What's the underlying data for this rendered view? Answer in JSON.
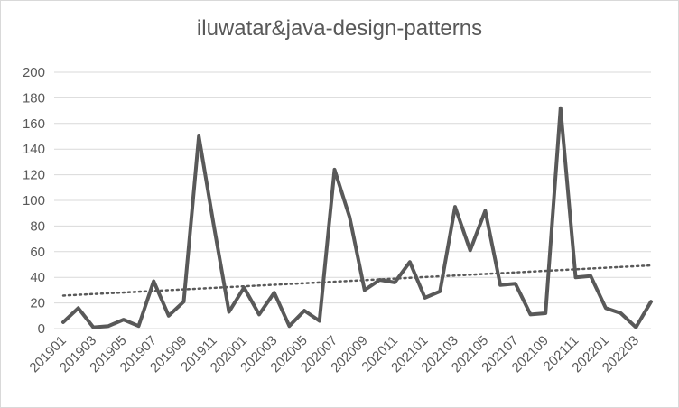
{
  "chart_data": {
    "type": "line",
    "title": "iluwatar&java-design-patterns",
    "xlabel": "",
    "ylabel": "",
    "ylim": [
      0,
      200
    ],
    "yticks": [
      0,
      20,
      40,
      60,
      80,
      100,
      120,
      140,
      160,
      180,
      200
    ],
    "grid": true,
    "legend": "none",
    "x": [
      "201901",
      "201902",
      "201903",
      "201904",
      "201905",
      "201906",
      "201907",
      "201908",
      "201909",
      "201910",
      "201911",
      "201912",
      "202001",
      "202002",
      "202003",
      "202004",
      "202005",
      "202006",
      "202007",
      "202008",
      "202009",
      "202010",
      "202011",
      "202012",
      "202101",
      "202102",
      "202103",
      "202104",
      "202105",
      "202106",
      "202107",
      "202108",
      "202109",
      "202110",
      "202111",
      "202112",
      "202201",
      "202202",
      "202203",
      "202204"
    ],
    "xtick_labels": [
      "201901",
      "201903",
      "201905",
      "201907",
      "201909",
      "201911",
      "202001",
      "202003",
      "202005",
      "202007",
      "202009",
      "202011",
      "202101",
      "202103",
      "202105",
      "202107",
      "202109",
      "202111",
      "202201",
      "202203"
    ],
    "series": [
      {
        "values": [
          5,
          16,
          1,
          2,
          7,
          2,
          37,
          10,
          21,
          150,
          80,
          13,
          32,
          11,
          28,
          2,
          14,
          6,
          124,
          87,
          30,
          38,
          36,
          52,
          24,
          29,
          95,
          61,
          92,
          34,
          35,
          11,
          12,
          172,
          40,
          41,
          16,
          12,
          1,
          21
        ],
        "color": "#595959"
      }
    ],
    "trendline": {
      "type": "linear",
      "style": "dotted",
      "color": "#595959"
    }
  }
}
